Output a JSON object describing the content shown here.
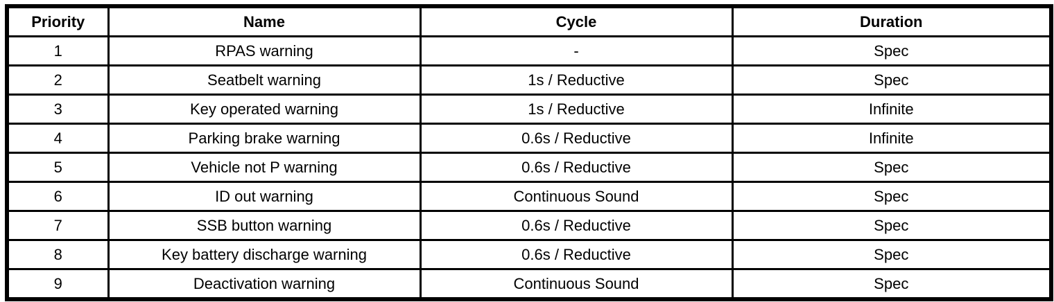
{
  "table": {
    "columns": [
      {
        "key": "priority",
        "label": "Priority"
      },
      {
        "key": "name",
        "label": "Name"
      },
      {
        "key": "cycle",
        "label": "Cycle"
      },
      {
        "key": "duration",
        "label": "Duration"
      }
    ],
    "rows": [
      {
        "priority": "1",
        "name": "RPAS warning",
        "cycle": "-",
        "duration": "Spec"
      },
      {
        "priority": "2",
        "name": "Seatbelt warning",
        "cycle": "1s / Reductive",
        "duration": "Spec"
      },
      {
        "priority": "3",
        "name": "Key operated warning",
        "cycle": "1s / Reductive",
        "duration": "Infinite"
      },
      {
        "priority": "4",
        "name": "Parking brake warning",
        "cycle": "0.6s / Reductive",
        "duration": "Infinite"
      },
      {
        "priority": "5",
        "name": "Vehicle not P warning",
        "cycle": "0.6s / Reductive",
        "duration": "Spec"
      },
      {
        "priority": "6",
        "name": "ID out warning",
        "cycle": "Continuous Sound",
        "duration": "Spec"
      },
      {
        "priority": "7",
        "name": "SSB button warning",
        "cycle": "0.6s / Reductive",
        "duration": "Spec"
      },
      {
        "priority": "8",
        "name": "Key battery discharge warning",
        "cycle": "0.6s / Reductive",
        "duration": "Spec"
      },
      {
        "priority": "9",
        "name": "Deactivation warning",
        "cycle": "Continuous Sound",
        "duration": "Spec"
      }
    ],
    "colors": {
      "border": "#000000",
      "background": "#ffffff",
      "text": "#000000"
    }
  }
}
